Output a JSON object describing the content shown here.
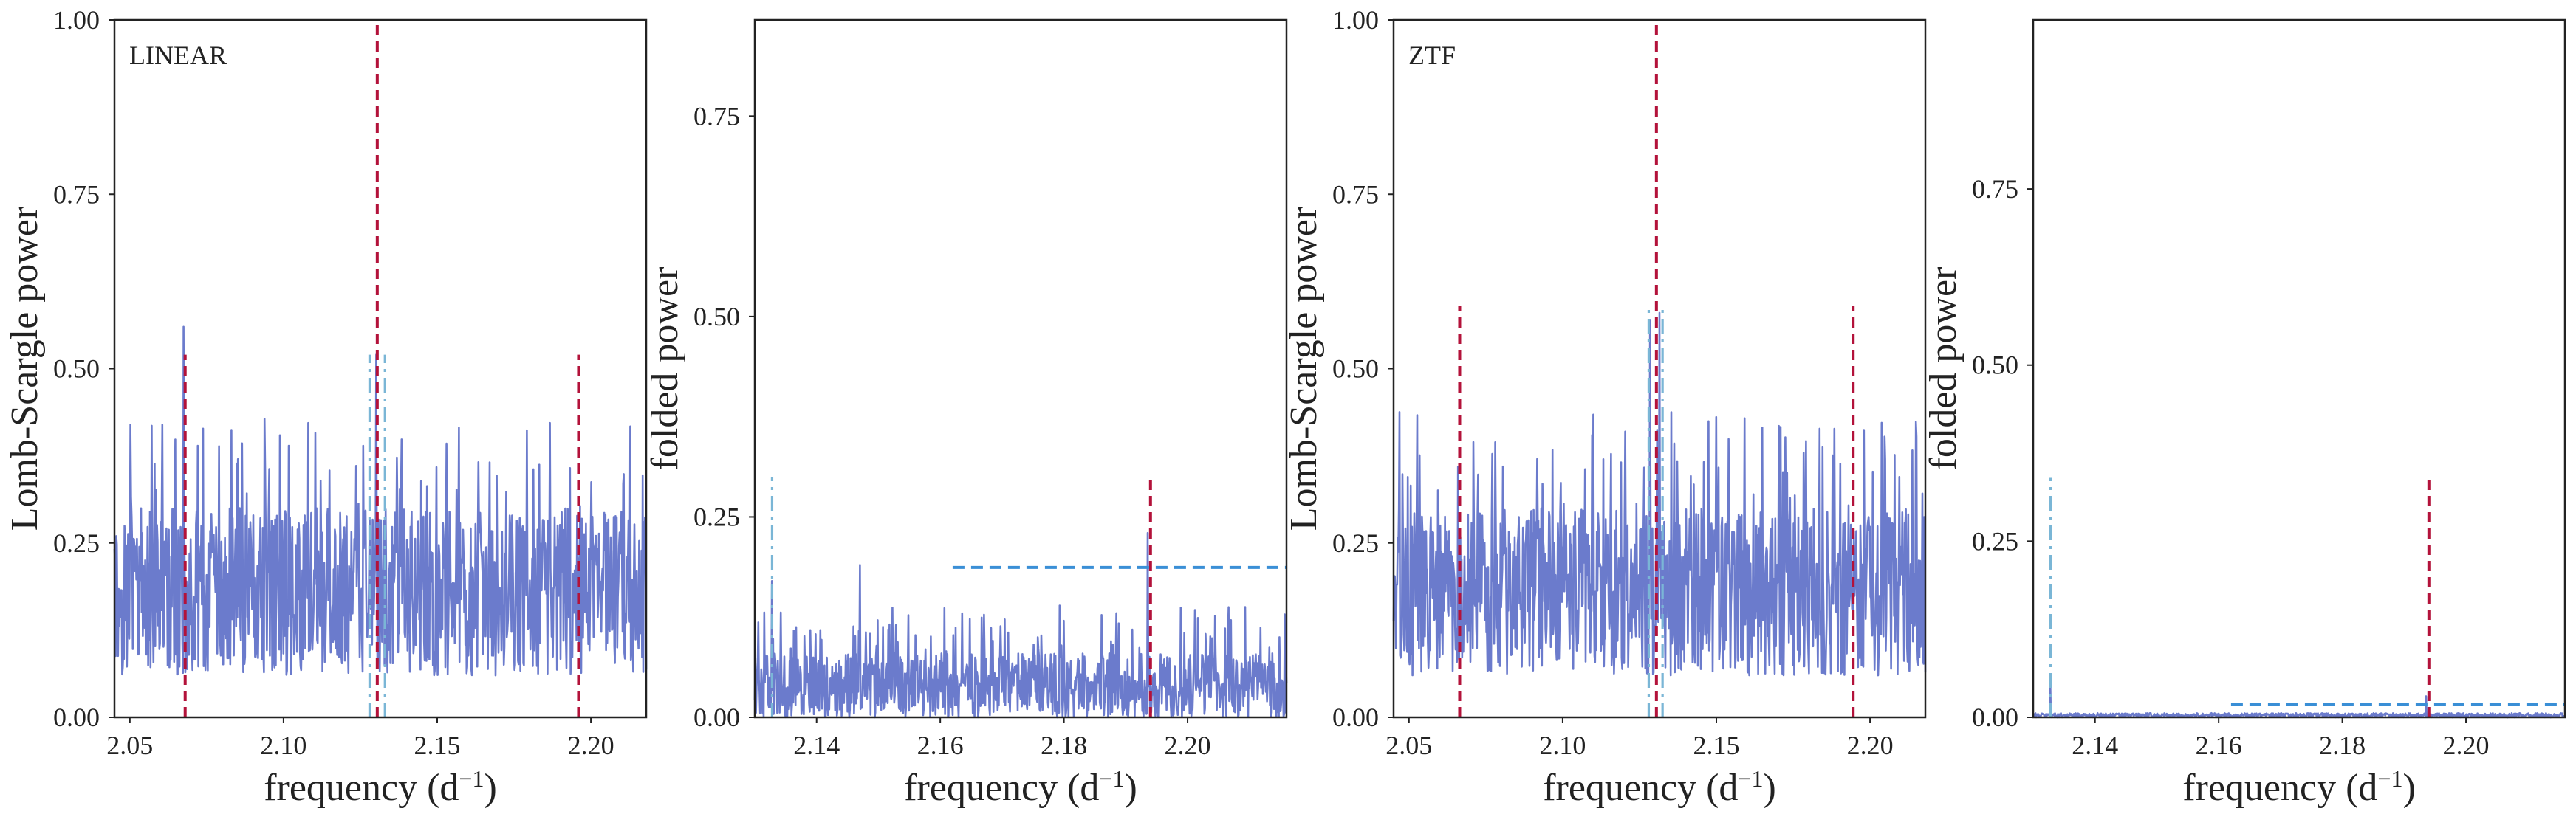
{
  "colors": {
    "signal": "#6b7bcc",
    "true_frequency": "#b3123a",
    "alias": "#7ab6d6",
    "threshold": "#3a8fd6",
    "frame": "#222222"
  },
  "panels": [
    {
      "label": "LINEAR",
      "xlabel": "frequency (d",
      "xlabel_sup": "−1",
      "xlabel_close": ")",
      "ylabel": "Lomb-Scargle power",
      "xticks": [
        "2.05",
        "2.10",
        "2.15",
        "2.20"
      ],
      "yticks": [
        "0.00",
        "0.25",
        "0.50",
        "0.75",
        "1.00"
      ]
    },
    {
      "label": "",
      "xlabel": "frequency (d",
      "xlabel_sup": "−1",
      "xlabel_close": ")",
      "ylabel": "folded power",
      "xticks": [
        "2.14",
        "2.16",
        "2.18",
        "2.20"
      ],
      "yticks": [
        "0.00",
        "0.25",
        "0.50",
        "0.75"
      ]
    },
    {
      "label": "ZTF",
      "xlabel": "frequency (d",
      "xlabel_sup": "−1",
      "xlabel_close": ")",
      "ylabel": "Lomb-Scargle power",
      "xticks": [
        "2.05",
        "2.10",
        "2.15",
        "2.20"
      ],
      "yticks": [
        "0.00",
        "0.25",
        "0.50",
        "0.75",
        "1.00"
      ]
    },
    {
      "label": "",
      "xlabel": "frequency (d",
      "xlabel_sup": "−1",
      "xlabel_close": ")",
      "ylabel": "folded power",
      "xticks": [
        "2.14",
        "2.16",
        "2.18",
        "2.20"
      ],
      "yticks": [
        "0.00",
        "0.25",
        "0.50",
        "0.75"
      ]
    }
  ],
  "chart_data": [
    {
      "type": "line",
      "label": "LINEAR",
      "xlim": [
        2.045,
        2.218
      ],
      "ylim": [
        0,
        1.0
      ],
      "noise": {
        "floor": 0.06,
        "mean": 0.18,
        "max": 0.44
      },
      "spikes": [
        [
          2.0675,
          0.56
        ],
        [
          2.1302,
          0.52
        ]
      ],
      "vlines": [
        {
          "x": 2.068,
          "ymax": 0.52,
          "kind": "true_frequency"
        },
        {
          "x": 2.1305,
          "ymax": 1.0,
          "kind": "true_frequency"
        },
        {
          "x": 2.196,
          "ymax": 0.52,
          "kind": "true_frequency"
        },
        {
          "x": 2.128,
          "ymax": 0.52,
          "kind": "alias"
        },
        {
          "x": 2.133,
          "ymax": 0.52,
          "kind": "alias"
        }
      ],
      "hlines": [],
      "grid": false
    },
    {
      "type": "line",
      "label": "",
      "xlim": [
        2.13,
        2.216
      ],
      "ylim": [
        0,
        0.87
      ],
      "noise": {
        "floor": 0.0,
        "mean": 0.04,
        "max": 0.14
      },
      "spikes": [
        [
          2.147,
          0.19
        ],
        [
          2.1935,
          0.23
        ],
        [
          2.1328,
          0.17
        ]
      ],
      "vlines": [
        {
          "x": 2.194,
          "ymax": 0.3,
          "kind": "true_frequency"
        },
        {
          "x": 2.1328,
          "ymax": 0.3,
          "kind": "alias"
        }
      ],
      "hlines": [
        {
          "y": 0.187,
          "xmin": 2.162,
          "xmax": 2.216,
          "kind": "threshold"
        }
      ],
      "grid": false
    },
    {
      "type": "line",
      "label": "ZTF",
      "xlim": [
        2.045,
        2.218
      ],
      "ylim": [
        0,
        1.0
      ],
      "noise": {
        "floor": 0.06,
        "mean": 0.18,
        "max": 0.44
      },
      "spikes": [
        [
          2.1285,
          0.57
        ],
        [
          2.1315,
          0.58
        ]
      ],
      "vlines": [
        {
          "x": 2.0665,
          "ymax": 0.59,
          "kind": "true_frequency"
        },
        {
          "x": 2.1305,
          "ymax": 1.0,
          "kind": "true_frequency"
        },
        {
          "x": 2.1945,
          "ymax": 0.59,
          "kind": "true_frequency"
        },
        {
          "x": 2.128,
          "ymax": 0.59,
          "kind": "alias"
        },
        {
          "x": 2.1325,
          "ymax": 0.59,
          "kind": "alias"
        }
      ],
      "hlines": [],
      "grid": false
    },
    {
      "type": "line",
      "label": "",
      "xlim": [
        2.13,
        2.216
      ],
      "ylim": [
        0,
        0.99
      ],
      "noise": {
        "floor": 0.0,
        "mean": 0.002,
        "max": 0.006
      },
      "spikes": [
        [
          2.1328,
          0.05
        ],
        [
          2.1935,
          0.03
        ]
      ],
      "vlines": [
        {
          "x": 2.194,
          "ymax": 0.34,
          "kind": "true_frequency"
        },
        {
          "x": 2.1328,
          "ymax": 0.34,
          "kind": "alias"
        }
      ],
      "hlines": [
        {
          "y": 0.018,
          "xmin": 2.162,
          "xmax": 2.216,
          "kind": "threshold"
        }
      ],
      "grid": false
    }
  ]
}
